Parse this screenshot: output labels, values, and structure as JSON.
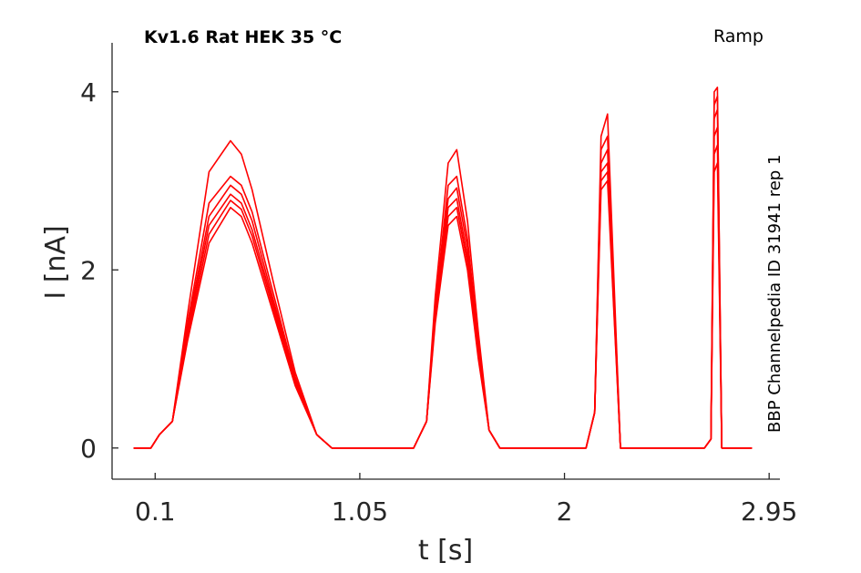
{
  "chart_data": {
    "type": "line",
    "title": "Kv1.6  Rat  HEK  35 °C",
    "protocol": "Ramp",
    "side_note": "BBP Channelpedia ID 31941 rep 1",
    "xlabel": "t [s]",
    "ylabel": "I [nA]",
    "xlim": [
      -0.1,
      3.0
    ],
    "ylim": [
      -0.35,
      4.55
    ],
    "x_ticks": [
      {
        "value": 0.1,
        "label": "0.1"
      },
      {
        "value": 1.05,
        "label": "1.05"
      },
      {
        "value": 2,
        "label": "2"
      },
      {
        "value": 2.95,
        "label": "2.95"
      }
    ],
    "y_ticks": [
      {
        "value": 0,
        "label": "0"
      },
      {
        "value": 2,
        "label": "2"
      },
      {
        "value": 4,
        "label": "4"
      }
    ],
    "grid": false,
    "line_color": "#ff0000",
    "series": [
      {
        "x": [
          0.0,
          0.08,
          0.12,
          0.18,
          0.25,
          0.35,
          0.45,
          0.5,
          0.55,
          0.65,
          0.75,
          0.85,
          0.92,
          1.0,
          1.3,
          1.36,
          1.4,
          1.46,
          1.5,
          1.55,
          1.6,
          1.65,
          1.7,
          1.95,
          2.1,
          2.14,
          2.17,
          2.2,
          2.26,
          2.3,
          2.65,
          2.68,
          2.695,
          2.71,
          2.73,
          2.87
        ],
        "y": [
          0.0,
          0.0,
          0.15,
          0.3,
          1.2,
          2.3,
          2.7,
          2.6,
          2.3,
          1.5,
          0.7,
          0.15,
          0.0,
          0.0,
          0.0,
          0.3,
          1.4,
          2.5,
          2.6,
          2.0,
          1.0,
          0.2,
          0.0,
          0.0,
          0.0,
          0.4,
          2.9,
          3.0,
          0.0,
          0.0,
          0.0,
          0.1,
          3.1,
          3.2,
          0.0,
          0.0
        ]
      },
      {
        "x": [
          0.0,
          0.08,
          0.12,
          0.18,
          0.25,
          0.35,
          0.45,
          0.5,
          0.55,
          0.65,
          0.75,
          0.85,
          0.92,
          1.0,
          1.3,
          1.36,
          1.4,
          1.46,
          1.5,
          1.55,
          1.6,
          1.65,
          1.7,
          1.95,
          2.1,
          2.14,
          2.17,
          2.2,
          2.26,
          2.3,
          2.65,
          2.68,
          2.695,
          2.71,
          2.73,
          2.87
        ],
        "y": [
          0.0,
          0.0,
          0.15,
          0.3,
          1.25,
          2.4,
          2.78,
          2.68,
          2.38,
          1.55,
          0.72,
          0.15,
          0.0,
          0.0,
          0.0,
          0.3,
          1.45,
          2.6,
          2.7,
          2.08,
          1.05,
          0.2,
          0.0,
          0.0,
          0.0,
          0.4,
          3.0,
          3.1,
          0.0,
          0.0,
          0.0,
          0.1,
          3.3,
          3.4,
          0.0,
          0.0
        ]
      },
      {
        "x": [
          0.0,
          0.08,
          0.12,
          0.18,
          0.25,
          0.35,
          0.45,
          0.5,
          0.55,
          0.65,
          0.75,
          0.85,
          0.92,
          1.0,
          1.3,
          1.36,
          1.4,
          1.46,
          1.5,
          1.55,
          1.6,
          1.65,
          1.7,
          1.95,
          2.1,
          2.14,
          2.17,
          2.2,
          2.26,
          2.3,
          2.65,
          2.68,
          2.695,
          2.71,
          2.73,
          2.87
        ],
        "y": [
          0.0,
          0.0,
          0.15,
          0.3,
          1.3,
          2.5,
          2.85,
          2.75,
          2.45,
          1.6,
          0.75,
          0.15,
          0.0,
          0.0,
          0.0,
          0.3,
          1.5,
          2.7,
          2.8,
          2.15,
          1.1,
          0.2,
          0.0,
          0.0,
          0.0,
          0.4,
          3.1,
          3.2,
          0.0,
          0.0,
          0.0,
          0.1,
          3.5,
          3.6,
          0.0,
          0.0
        ]
      },
      {
        "x": [
          0.0,
          0.08,
          0.12,
          0.18,
          0.25,
          0.35,
          0.45,
          0.5,
          0.55,
          0.65,
          0.75,
          0.85,
          0.92,
          1.0,
          1.3,
          1.36,
          1.4,
          1.46,
          1.5,
          1.55,
          1.6,
          1.65,
          1.7,
          1.95,
          2.1,
          2.14,
          2.17,
          2.2,
          2.26,
          2.3,
          2.65,
          2.68,
          2.695,
          2.71,
          2.73,
          2.87
        ],
        "y": [
          0.0,
          0.0,
          0.15,
          0.3,
          1.35,
          2.6,
          2.95,
          2.85,
          2.55,
          1.65,
          0.78,
          0.15,
          0.0,
          0.0,
          0.0,
          0.3,
          1.55,
          2.8,
          2.92,
          2.25,
          1.15,
          0.2,
          0.0,
          0.0,
          0.0,
          0.4,
          3.2,
          3.35,
          0.0,
          0.0,
          0.0,
          0.1,
          3.7,
          3.8,
          0.0,
          0.0
        ]
      },
      {
        "x": [
          0.0,
          0.08,
          0.12,
          0.18,
          0.25,
          0.35,
          0.45,
          0.5,
          0.55,
          0.65,
          0.75,
          0.85,
          0.92,
          1.0,
          1.3,
          1.36,
          1.4,
          1.46,
          1.5,
          1.55,
          1.6,
          1.65,
          1.7,
          1.95,
          2.1,
          2.14,
          2.17,
          2.2,
          2.26,
          2.3,
          2.65,
          2.68,
          2.695,
          2.71,
          2.73,
          2.87
        ],
        "y": [
          0.0,
          0.0,
          0.15,
          0.3,
          1.4,
          2.75,
          3.05,
          2.95,
          2.65,
          1.72,
          0.8,
          0.15,
          0.0,
          0.0,
          0.0,
          0.3,
          1.6,
          2.95,
          3.05,
          2.35,
          1.2,
          0.2,
          0.0,
          0.0,
          0.0,
          0.4,
          3.35,
          3.5,
          0.0,
          0.0,
          0.0,
          0.1,
          3.85,
          3.95,
          0.0,
          0.0
        ]
      },
      {
        "x": [
          0.0,
          0.08,
          0.12,
          0.18,
          0.25,
          0.35,
          0.45,
          0.5,
          0.55,
          0.65,
          0.75,
          0.85,
          0.92,
          1.0,
          1.3,
          1.36,
          1.4,
          1.46,
          1.5,
          1.55,
          1.6,
          1.65,
          1.7,
          1.95,
          2.1,
          2.14,
          2.17,
          2.2,
          2.26,
          2.3,
          2.65,
          2.68,
          2.695,
          2.71,
          2.73,
          2.87
        ],
        "y": [
          0.0,
          0.0,
          0.15,
          0.3,
          1.5,
          3.1,
          3.45,
          3.3,
          2.9,
          1.85,
          0.85,
          0.15,
          0.0,
          0.0,
          0.0,
          0.3,
          1.7,
          3.2,
          3.35,
          2.55,
          1.3,
          0.2,
          0.0,
          0.0,
          0.0,
          0.4,
          3.5,
          3.75,
          0.0,
          0.0,
          0.0,
          0.1,
          4.0,
          4.05,
          0.0,
          0.0
        ]
      }
    ]
  }
}
